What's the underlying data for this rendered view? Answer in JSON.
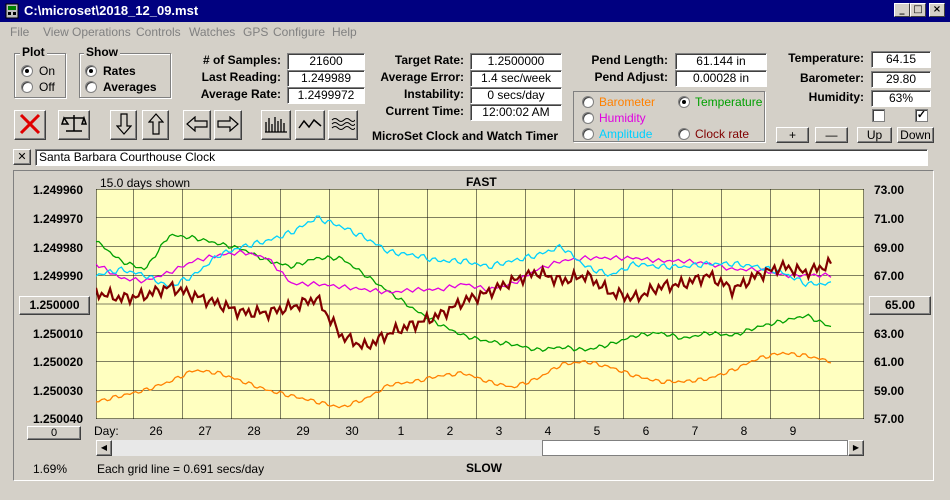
{
  "window": {
    "title": "C:\\microset\\2018_12_09.mst"
  },
  "menu": [
    "File",
    "View",
    "Operations",
    "Controls",
    "Watches",
    "GPS",
    "Configure",
    "Help"
  ],
  "plot_group": {
    "title": "Plot",
    "options": [
      {
        "label": "On",
        "selected": true
      },
      {
        "label": "Off",
        "selected": false
      }
    ]
  },
  "show_group": {
    "title": "Show",
    "options": [
      {
        "label": "Rates",
        "selected": true
      },
      {
        "label": "Averages",
        "selected": false
      }
    ]
  },
  "stats": {
    "samples_label": "# of Samples:",
    "samples": "21600",
    "last_label": "Last Reading:",
    "last": "1.249989",
    "avg_label": "Average Rate:",
    "avg": "1.2499972"
  },
  "rates": {
    "target_label": "Target Rate:",
    "target": "1.2500000",
    "error_label": "Average Error:",
    "error": "1.4 sec/week",
    "instab_label": "Instability:",
    "instab": "0 secs/day",
    "time_label": "Current Time:",
    "time": "12:00:02 AM"
  },
  "app_caption": "MicroSet Clock and Watch Timer",
  "pend": {
    "length_label": "Pend Length:",
    "length": "61.144 in",
    "adjust_label": "Pend Adjust:",
    "adjust": "0.00028 in"
  },
  "aux_options": [
    {
      "label": "Barometer",
      "color": "#ff8000",
      "selected": false
    },
    {
      "label": "Temperature",
      "color": "#00a000",
      "selected": true
    },
    {
      "label": "Humidity",
      "color": "#e000e0",
      "selected": false
    },
    {
      "label": "Amplitude",
      "color": "#00d0ff",
      "selected": false
    },
    {
      "label": "Clock rate",
      "color": "#800000",
      "selected": false
    }
  ],
  "env": {
    "temp_label": "Temperature:",
    "temp": "64.15",
    "baro_label": "Barometer:",
    "baro": "29.80",
    "hum_label": "Humidity:",
    "hum": "63%",
    "check1": false,
    "check2": true
  },
  "env_buttons": [
    "+",
    "—",
    "Up",
    "Down"
  ],
  "clock_name": {
    "close": "✕",
    "value": "Santa Barbara Courthouse Clock"
  },
  "chart_data": {
    "type": "line",
    "header_left": "15.0 days shown",
    "title_top": "FAST",
    "title_bottom": "SLOW",
    "footer_left": "Each grid line = 0.691 secs/day",
    "footer_percent": "1.69%",
    "x_label": "Day:",
    "x_ticks": [
      "26",
      "27",
      "28",
      "29",
      "30",
      "1",
      "2",
      "3",
      "4",
      "5",
      "6",
      "7",
      "8",
      "9"
    ],
    "left_axis": {
      "ticks": [
        "1.249960",
        "1.249970",
        "1.249980",
        "1.249990",
        "1.250000",
        "1.250010",
        "1.250020",
        "1.250030",
        "1.250040"
      ],
      "center_button": "1.250000",
      "ylim": [
        1.24996,
        1.25004
      ],
      "inverted": true
    },
    "right_axis": {
      "ticks": [
        "73.00",
        "71.00",
        "69.00",
        "67.00",
        "65.00",
        "63.00",
        "61.00",
        "59.00",
        "57.00"
      ],
      "center_button": "65.00",
      "ylim": [
        57,
        73
      ]
    },
    "offset_button": "0",
    "grid": true,
    "background": "#ffffc0",
    "series": [
      {
        "color": "#ff8000",
        "values": [
          1.250034,
          1.250032,
          1.25003,
          1.250027,
          1.250023,
          1.250024,
          1.250027,
          1.25003,
          1.250032,
          1.250034,
          1.250036,
          1.250033,
          1.250028,
          1.250027,
          1.250025,
          1.250024,
          1.250027,
          1.250029,
          1.250026,
          1.250021,
          1.25002,
          1.250022,
          1.250025,
          1.250027,
          1.250027,
          1.250026,
          1.250023,
          1.250019,
          1.250017,
          1.250018,
          1.25002
        ]
      },
      {
        "color": "#00a000",
        "values": [
          1.249978,
          1.249985,
          1.249988,
          1.249976,
          1.249977,
          1.249979,
          1.249981,
          1.249985,
          1.249987,
          1.249984,
          1.249984,
          1.24999,
          1.249996,
          1.250002,
          1.250007,
          1.250011,
          1.250013,
          1.250014,
          1.250016,
          1.250015,
          1.250016,
          1.250014,
          1.250011,
          1.25001,
          1.250012,
          1.25001,
          1.250011,
          1.250008,
          1.250006,
          1.250004,
          1.250008
        ]
      },
      {
        "color": "#e000e0",
        "values": [
          1.249986,
          1.249991,
          1.249992,
          1.249989,
          1.249985,
          1.249983,
          1.249982,
          1.249984,
          1.249993,
          1.249993,
          1.249994,
          1.249995,
          1.249996,
          1.249995,
          1.249995,
          1.249993,
          1.249995,
          1.249993,
          1.249988,
          1.249985,
          1.249984,
          1.249984,
          1.249984,
          1.249985,
          1.249985,
          1.249986,
          1.249988,
          1.249988,
          1.24999,
          1.24999,
          1.24999
        ]
      },
      {
        "color": "#00d0ff",
        "values": [
          1.24999,
          1.249988,
          1.24999,
          1.249994,
          1.24999,
          1.249983,
          1.24998,
          1.249978,
          1.249975,
          1.24997,
          1.249973,
          1.249977,
          1.249982,
          1.249983,
          1.249985,
          1.249985,
          1.249987,
          1.249985,
          1.249983,
          1.24998,
          1.249987,
          1.24999,
          1.249986,
          1.249987,
          1.249987,
          1.249986,
          1.249986,
          1.249987,
          1.249989,
          1.249993,
          1.249993
        ]
      },
      {
        "color": "#800000",
        "values": [
          1.249996,
          1.249998,
          1.249997,
          1.249994,
          1.249997,
          1.25,
          1.250003,
          1.250003,
          1.250001,
          1.249998,
          1.250011,
          1.250015,
          1.25001,
          1.250007,
          1.250004,
          1.249999,
          1.249996,
          1.249992,
          1.249989,
          1.249992,
          1.24999,
          1.249996,
          1.249998,
          1.249994,
          1.249993,
          1.24999,
          1.249995,
          1.24999,
          1.249987,
          1.249989,
          1.249986
        ]
      }
    ]
  }
}
